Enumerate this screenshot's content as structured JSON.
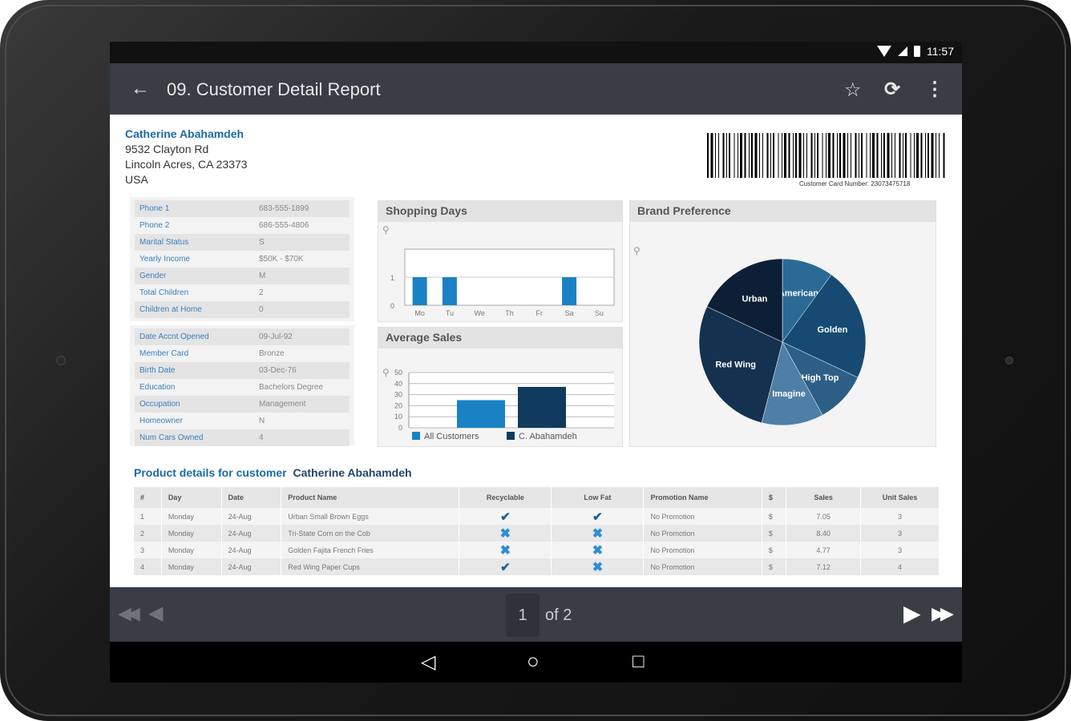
{
  "status_bar": {
    "time": "11:57"
  },
  "toolbar": {
    "title": "09. Customer Detail Report",
    "back_icon": "arrow-left-icon",
    "star_icon": "star-outline-icon",
    "refresh_icon": "refresh-icon",
    "menu_icon": "overflow-menu-icon"
  },
  "customer": {
    "name": "Catherine Abahamdeh",
    "street": "9532 Clayton Rd",
    "city_line": "Lincoln Acres, CA 23373",
    "country": "USA",
    "barcode_caption": "Customer Card Number: 23073475718"
  },
  "info_panel_1": [
    {
      "label": "Phone 1",
      "value": "683-555-1899"
    },
    {
      "label": "Phone 2",
      "value": "686-555-4806"
    },
    {
      "label": "Marital Status",
      "value": "S"
    },
    {
      "label": "Yearly Income",
      "value": "$50K - $70K"
    },
    {
      "label": "Gender",
      "value": "M"
    },
    {
      "label": "Total Children",
      "value": "2"
    },
    {
      "label": "Children at Home",
      "value": "0"
    }
  ],
  "info_panel_2": [
    {
      "label": "Date Accnt Opened",
      "value": "09-Jul-92"
    },
    {
      "label": "Member Card",
      "value": "Bronze"
    },
    {
      "label": "Birth Date",
      "value": "03-Dec-76"
    },
    {
      "label": "Education",
      "value": "Bachelors Degree"
    },
    {
      "label": "Occupation",
      "value": "Management"
    },
    {
      "label": "Homeowner",
      "value": "N"
    },
    {
      "label": "Num Cars Owned",
      "value": "4"
    }
  ],
  "panels": {
    "shopping_title": "Shopping Days",
    "sales_title": "Average Sales",
    "brand_title": "Brand Preference"
  },
  "chart_data": [
    {
      "type": "bar",
      "title": "Shopping Days",
      "categories": [
        "Mo",
        "Tu",
        "We",
        "Th",
        "Fr",
        "Sa",
        "Su"
      ],
      "values": [
        1,
        1,
        0,
        0,
        0,
        1,
        0
      ],
      "ylim": [
        0,
        2
      ],
      "yticks": [
        "0",
        "1"
      ],
      "color": "#1a82c4"
    },
    {
      "type": "bar",
      "title": "Average Sales",
      "categories": [
        "All Customers",
        "C. Abahamdeh"
      ],
      "values": [
        25,
        37
      ],
      "ylim": [
        0,
        50
      ],
      "yticks": [
        "0",
        "10",
        "20",
        "30",
        "40",
        "50"
      ],
      "colors": [
        "#1a82c4",
        "#0f3a5e"
      ],
      "legend": [
        "All Customers",
        "C. Abahamdeh"
      ]
    },
    {
      "type": "pie",
      "title": "Brand Preference",
      "slices": [
        {
          "label": "American",
          "value": 10,
          "color": "#2a6a95"
        },
        {
          "label": "Golden",
          "value": 22,
          "color": "#174a72"
        },
        {
          "label": "High Top",
          "value": 10,
          "color": "#2d5f86"
        },
        {
          "label": "Imagine",
          "value": 12,
          "color": "#4e7fa6"
        },
        {
          "label": "Red Wing",
          "value": 28,
          "color": "#14314f"
        },
        {
          "label": "Urban",
          "value": 18,
          "color": "#0c1f36"
        }
      ]
    }
  ],
  "product": {
    "title": "Product details for customer",
    "customer": "Catherine Abahamdeh",
    "columns": [
      "#",
      "Day",
      "Date",
      "Product Name",
      "Recyclable",
      "Low Fat",
      "Promotion Name",
      "$",
      "Sales",
      "Unit Sales"
    ],
    "rows": [
      {
        "n": "1",
        "day": "Monday",
        "date": "24-Aug",
        "product": "Urban Small Brown Eggs",
        "recyclable": "yes",
        "lowfat": "yes",
        "promo": "No Promotion",
        "cur": "$",
        "sales": "7.05",
        "units": "3"
      },
      {
        "n": "2",
        "day": "Monday",
        "date": "24-Aug",
        "product": "Tri-State Corn on the Cob",
        "recyclable": "no",
        "lowfat": "no",
        "promo": "No Promotion",
        "cur": "$",
        "sales": "8.40",
        "units": "3"
      },
      {
        "n": "3",
        "day": "Monday",
        "date": "24-Aug",
        "product": "Golden Fajita French Fries",
        "recyclable": "no",
        "lowfat": "no",
        "promo": "No Promotion",
        "cur": "$",
        "sales": "4.77",
        "units": "3"
      },
      {
        "n": "4",
        "day": "Monday",
        "date": "24-Aug",
        "product": "Red Wing Paper Cups",
        "recyclable": "yes",
        "lowfat": "no",
        "promo": "No Promotion",
        "cur": "$",
        "sales": "7.12",
        "units": "4"
      }
    ]
  },
  "pager": {
    "current_page": "1",
    "of_label": "of 2"
  },
  "nav_bar": {
    "back_icon": "nav-back-triangle-icon",
    "home_icon": "nav-home-circle-icon",
    "recent_icon": "nav-recent-square-icon"
  }
}
